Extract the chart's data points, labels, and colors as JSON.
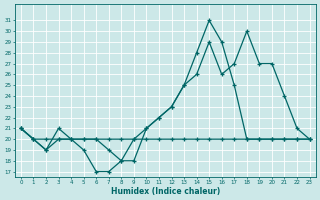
{
  "xlabel": "Humidex (Indice chaleur)",
  "xlim": [
    -0.5,
    23.5
  ],
  "ylim": [
    16.5,
    32.5
  ],
  "yticks": [
    17,
    18,
    19,
    20,
    21,
    22,
    23,
    24,
    25,
    26,
    27,
    28,
    29,
    30,
    31
  ],
  "xticks": [
    0,
    1,
    2,
    3,
    4,
    5,
    6,
    7,
    8,
    9,
    10,
    11,
    12,
    13,
    14,
    15,
    16,
    17,
    18,
    19,
    20,
    21,
    22,
    23
  ],
  "bg_color": "#cce8e8",
  "grid_color": "#ffffff",
  "line_color": "#006666",
  "line1_x": [
    0,
    1,
    2,
    3,
    4,
    5,
    6,
    7,
    8,
    9,
    10,
    11,
    12,
    13,
    14,
    15,
    16,
    17,
    18,
    19,
    20,
    21,
    22,
    23
  ],
  "line1_y": [
    21,
    20,
    19,
    20,
    20,
    19,
    17,
    17,
    18,
    18,
    21,
    22,
    23,
    25,
    28,
    31,
    29,
    25,
    20,
    20,
    20,
    20,
    20,
    20
  ],
  "line2_x": [
    0,
    1,
    2,
    3,
    4,
    5,
    6,
    7,
    8,
    9,
    10,
    11,
    12,
    13,
    14,
    15,
    16,
    17,
    18,
    19,
    20,
    21,
    22,
    23
  ],
  "line2_y": [
    21,
    20,
    19,
    21,
    20,
    20,
    20,
    19,
    18,
    20,
    21,
    22,
    23,
    25,
    26,
    29,
    26,
    27,
    30,
    27,
    27,
    24,
    21,
    20
  ],
  "line3_x": [
    0,
    1,
    2,
    3,
    4,
    5,
    6,
    7,
    8,
    9,
    10,
    11,
    12,
    13,
    14,
    15,
    16,
    17,
    18,
    19,
    20,
    21,
    22,
    23
  ],
  "line3_y": [
    21,
    20,
    20,
    20,
    20,
    20,
    20,
    20,
    20,
    20,
    20,
    20,
    20,
    20,
    20,
    20,
    20,
    20,
    20,
    20,
    20,
    20,
    20,
    20
  ],
  "markersize": 3.5,
  "linewidth": 0.9
}
